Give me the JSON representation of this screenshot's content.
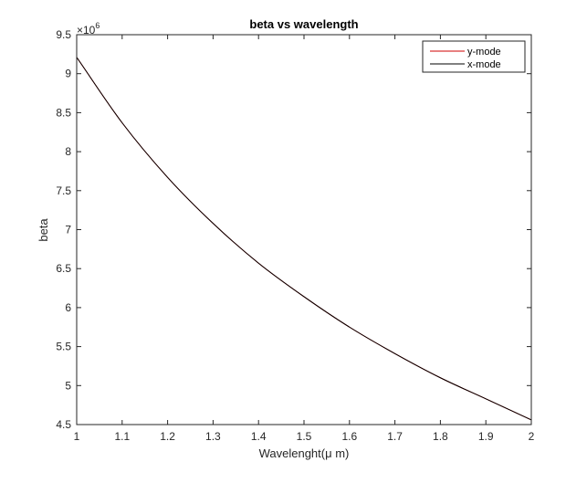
{
  "chart_data": {
    "type": "line",
    "title": "beta vs wavelength",
    "xlabel": "Wavelenght(μ m)",
    "ylabel": "beta",
    "xlim": [
      1,
      2
    ],
    "ylim": [
      4.5,
      9.5
    ],
    "y_multiplier_label": "×10",
    "y_multiplier_exponent": "6",
    "x_ticks": [
      1,
      1.1,
      1.2,
      1.3,
      1.4,
      1.5,
      1.6,
      1.7,
      1.8,
      1.9,
      2
    ],
    "x_tick_labels": [
      "1",
      "1.1",
      "1.2",
      "1.3",
      "1.4",
      "1.5",
      "1.6",
      "1.7",
      "1.8",
      "1.9",
      "2"
    ],
    "y_ticks": [
      4.5,
      5,
      5.5,
      6,
      6.5,
      7,
      7.5,
      8,
      8.5,
      9,
      9.5
    ],
    "y_tick_labels": [
      "4.5",
      "5",
      "5.5",
      "6",
      "6.5",
      "7",
      "7.5",
      "8",
      "8.5",
      "9",
      "9.5"
    ],
    "grid": false,
    "legend_position": "top-right",
    "series": [
      {
        "name": "y-mode",
        "color": "#d00000",
        "x": [
          1,
          1.1,
          1.2,
          1.3,
          1.4,
          1.5,
          1.6,
          1.7,
          1.8,
          1.9,
          2
        ],
        "y": [
          9.21,
          8.37,
          7.67,
          7.08,
          6.57,
          6.14,
          5.75,
          5.41,
          5.1,
          4.83,
          4.56
        ]
      },
      {
        "name": "x-mode",
        "color": "#000000",
        "x": [
          1,
          1.1,
          1.2,
          1.3,
          1.4,
          1.5,
          1.6,
          1.7,
          1.8,
          1.9,
          2
        ],
        "y": [
          9.21,
          8.37,
          7.67,
          7.08,
          6.57,
          6.14,
          5.75,
          5.41,
          5.1,
          4.83,
          4.56
        ]
      }
    ]
  }
}
